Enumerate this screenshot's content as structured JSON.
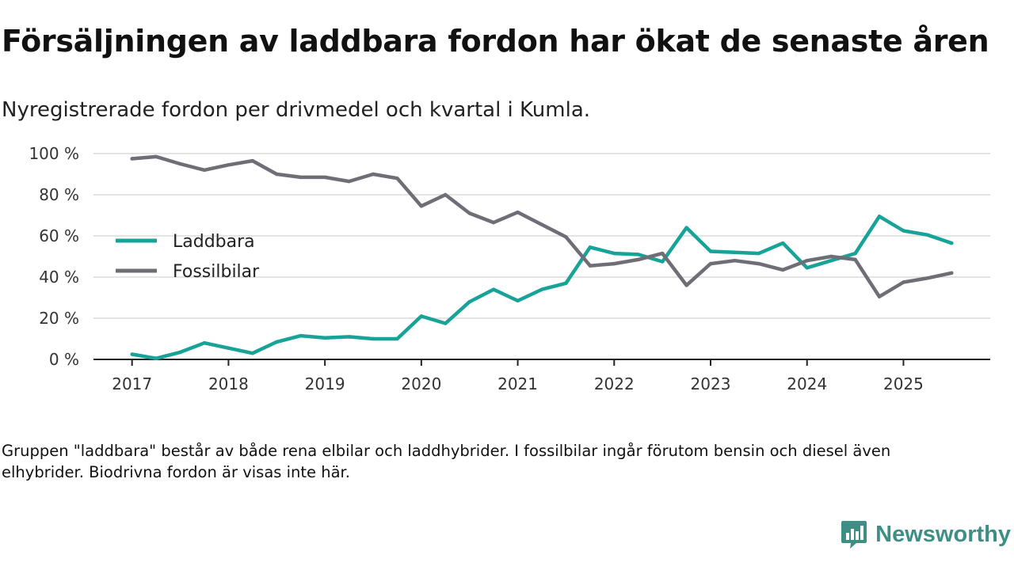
{
  "header": {
    "title": "Försäljningen av laddbara fordon har ökat de senaste åren",
    "subtitle": "Nyregistrerade fordon per drivmedel och kvartal i Kumla."
  },
  "footer": {
    "note": "Gruppen \"laddbara\" består av både rena elbilar och laddhybrider. I fossilbilar ingår förutom bensin och diesel även elhybrider. Biodrivna fordon är visas inte här."
  },
  "brand": {
    "name": "Newsworthy",
    "icon": "newsworthy-logo-icon",
    "color": "#3d8f86"
  },
  "chart_data": {
    "type": "line",
    "title": "Försäljningen av laddbara fordon har ökat de senaste åren",
    "subtitle": "Nyregistrerade fordon per drivmedel och kvartal i Kumla.",
    "xlabel": "",
    "ylabel": "",
    "x_start": 2017,
    "x_step": 0.25,
    "xlim": [
      2016.6,
      2025.9
    ],
    "ylim": [
      0,
      100
    ],
    "y_ticks": [
      0,
      20,
      40,
      60,
      80,
      100
    ],
    "y_tick_labels": [
      "0 %",
      "20 %",
      "40 %",
      "60 %",
      "80 %",
      "100 %"
    ],
    "x_ticks": [
      2017,
      2018,
      2019,
      2020,
      2021,
      2022,
      2023,
      2024,
      2025
    ],
    "x_tick_labels": [
      "2017",
      "2018",
      "2019",
      "2020",
      "2021",
      "2022",
      "2023",
      "2024",
      "2025"
    ],
    "grid": true,
    "legend_position": "left-middle",
    "series": [
      {
        "name": "Laddbara",
        "color": "#17a398",
        "values": [
          2.5,
          0.5,
          3.5,
          8,
          5.5,
          3,
          8.5,
          11.5,
          10.5,
          11,
          10,
          10,
          21,
          17.5,
          28,
          34,
          28.5,
          34,
          37,
          54.5,
          51.5,
          51,
          47.5,
          64,
          52.5,
          52,
          51.5,
          56.5,
          44.5,
          48,
          51.5,
          69.5,
          62.5,
          60.5,
          56.5
        ]
      },
      {
        "name": "Fossilbilar",
        "color": "#6f6e76",
        "values": [
          97.5,
          98.5,
          95,
          92,
          94.5,
          96.5,
          90,
          88.5,
          88.5,
          86.5,
          90,
          88,
          74.5,
          80,
          71,
          66.5,
          71.5,
          65.5,
          59.5,
          45.5,
          46.5,
          48.5,
          51.5,
          36,
          46.5,
          48,
          46.5,
          43.5,
          48,
          50,
          48.5,
          30.5,
          37.5,
          39.5,
          42
        ]
      }
    ]
  }
}
